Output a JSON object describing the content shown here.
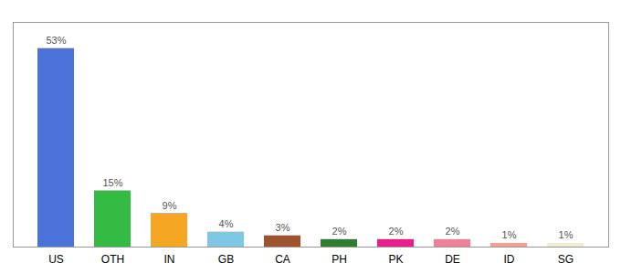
{
  "chart_data": {
    "type": "bar",
    "categories": [
      "US",
      "OTH",
      "IN",
      "GB",
      "CA",
      "PH",
      "PK",
      "DE",
      "ID",
      "SG"
    ],
    "values": [
      53,
      15,
      9,
      4,
      3,
      2,
      2,
      2,
      1,
      1
    ],
    "value_labels": [
      "53%",
      "15%",
      "9%",
      "4%",
      "3%",
      "2%",
      "2%",
      "2%",
      "1%",
      "1%"
    ],
    "colors": [
      "#4A72D9",
      "#33BB44",
      "#F5A623",
      "#7EC8E3",
      "#A0522D",
      "#2E7D32",
      "#E91E8C",
      "#F08098",
      "#F4A090",
      "#F0EDD0"
    ],
    "ylim": [
      0,
      60
    ],
    "data_labels": true,
    "tick_labels": "x",
    "grid": false
  }
}
